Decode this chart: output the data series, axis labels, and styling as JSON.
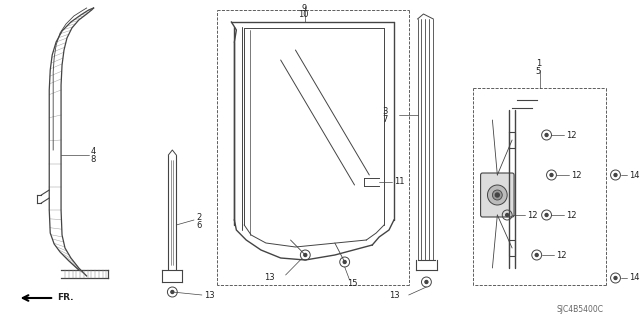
{
  "background_color": "#ffffff",
  "line_color": "#444444",
  "text_color": "#222222",
  "fig_width": 6.4,
  "fig_height": 3.19,
  "dpi": 100
}
